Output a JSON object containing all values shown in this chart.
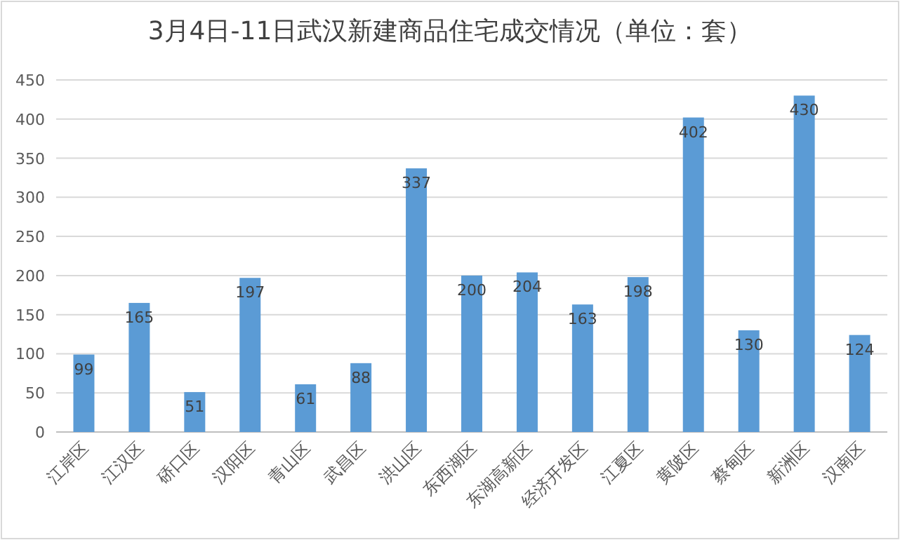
{
  "chart_data": {
    "type": "bar",
    "title": "3月4日-11日武汉新建商品住宅成交情况（单位：套）",
    "categories": [
      "江岸区",
      "江汉区",
      "硚口区",
      "汉阳区",
      "青山区",
      "武昌区",
      "洪山区",
      "东西湖区",
      "东湖高新区",
      "经济开发区",
      "江夏区",
      "黄陂区",
      "蔡甸区",
      "新洲区",
      "汉南区"
    ],
    "values": [
      99,
      165,
      51,
      197,
      61,
      88,
      337,
      200,
      204,
      163,
      198,
      402,
      130,
      430,
      124
    ],
    "color": "#5b9bd5",
    "ylim": [
      0,
      450
    ],
    "yticks": [
      0,
      50,
      100,
      150,
      200,
      250,
      300,
      350,
      400,
      450
    ],
    "grid": "y",
    "data_labels": true
  }
}
